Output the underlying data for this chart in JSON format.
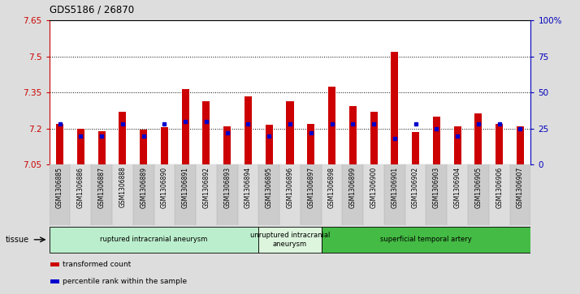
{
  "title": "GDS5186 / 26870",
  "samples": [
    "GSM1306885",
    "GSM1306886",
    "GSM1306887",
    "GSM1306888",
    "GSM1306889",
    "GSM1306890",
    "GSM1306891",
    "GSM1306892",
    "GSM1306893",
    "GSM1306894",
    "GSM1306895",
    "GSM1306896",
    "GSM1306897",
    "GSM1306898",
    "GSM1306899",
    "GSM1306900",
    "GSM1306901",
    "GSM1306902",
    "GSM1306903",
    "GSM1306904",
    "GSM1306905",
    "GSM1306906",
    "GSM1306907"
  ],
  "transformed_count": [
    7.22,
    7.2,
    7.19,
    7.27,
    7.195,
    7.205,
    7.365,
    7.315,
    7.21,
    7.335,
    7.215,
    7.315,
    7.22,
    7.375,
    7.295,
    7.27,
    7.52,
    7.185,
    7.25,
    7.21,
    7.265,
    7.22,
    7.21
  ],
  "percentile_rank": [
    28,
    20,
    20,
    28,
    20,
    28,
    30,
    30,
    22,
    28,
    20,
    28,
    22,
    28,
    28,
    28,
    18,
    28,
    25,
    20,
    28,
    28,
    25
  ],
  "ymin": 7.05,
  "ymax": 7.65,
  "yticks": [
    7.05,
    7.2,
    7.35,
    7.5,
    7.65
  ],
  "ytick_labels": [
    "7.05",
    "7.2",
    "7.35",
    "7.5",
    "7.65"
  ],
  "y2ticks": [
    0,
    25,
    50,
    75,
    100
  ],
  "y2tick_labels": [
    "0",
    "25",
    "50",
    "75",
    "100%"
  ],
  "hlines": [
    7.2,
    7.35,
    7.5
  ],
  "bar_color": "#cc0000",
  "dot_color": "#0000cc",
  "bar_bottom": 7.05,
  "groups": [
    {
      "label": "ruptured intracranial aneurysm",
      "start": 0,
      "end": 10,
      "color": "#bbeecc"
    },
    {
      "label": "unruptured intracranial\naneurysm",
      "start": 10,
      "end": 13,
      "color": "#ddf5dd"
    },
    {
      "label": "superficial temporal artery",
      "start": 13,
      "end": 23,
      "color": "#44bb44"
    }
  ],
  "tissue_label": "tissue",
  "legend_items": [
    {
      "color": "#cc0000",
      "label": "transformed count"
    },
    {
      "color": "#0000cc",
      "label": "percentile rank within the sample"
    }
  ],
  "bg_color": "#dddddd",
  "plot_bg": "#ffffff",
  "axis_color_left": "#cc0000",
  "axis_color_right": "#0000bb",
  "xtick_bg_colors": [
    "#cccccc",
    "#dddddd"
  ]
}
